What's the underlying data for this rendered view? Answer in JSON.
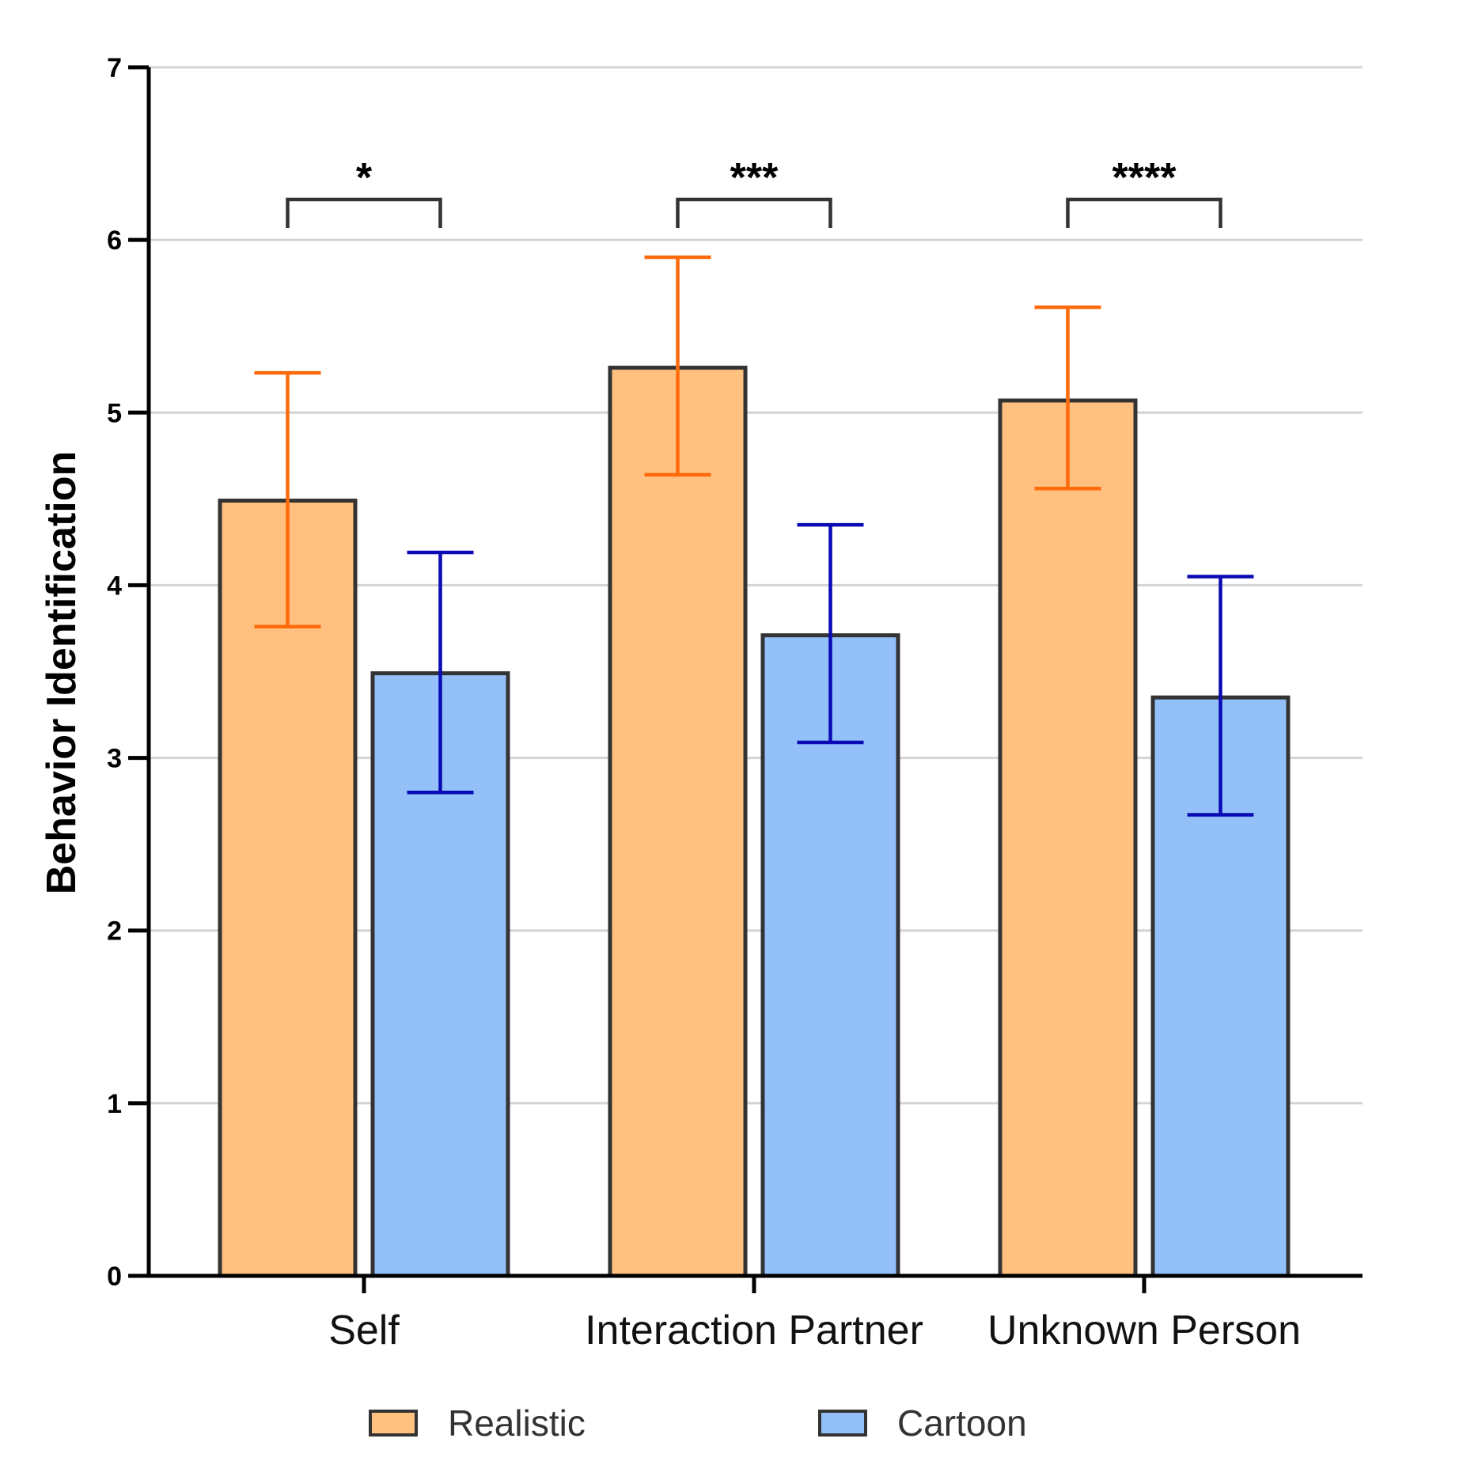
{
  "chart_data": {
    "type": "bar",
    "title": "",
    "xlabel": "",
    "ylabel": "Behavior Identification",
    "ylim": [
      0,
      7
    ],
    "yticks": [
      0,
      1,
      2,
      3,
      4,
      5,
      6,
      7
    ],
    "grid": true,
    "categories": [
      "Self",
      "Interaction Partner",
      "Unknown Person"
    ],
    "series": [
      {
        "name": "Realistic",
        "fill": "#FFC080",
        "error_color": "#FF6A0A",
        "values": [
          4.49,
          5.26,
          5.07
        ],
        "error_low": [
          3.76,
          4.64,
          4.56
        ],
        "error_high": [
          5.23,
          5.9,
          5.61
        ]
      },
      {
        "name": "Cartoon",
        "fill": "#93C0F8",
        "error_color": "#0A0AB4",
        "values": [
          3.49,
          3.71,
          3.35
        ],
        "error_low": [
          2.8,
          3.09,
          2.67
        ],
        "error_high": [
          4.19,
          4.35,
          4.05
        ]
      }
    ],
    "significance": [
      {
        "category": "Self",
        "label": "*"
      },
      {
        "category": "Interaction Partner",
        "label": "***"
      },
      {
        "category": "Unknown Person",
        "label": "****"
      }
    ],
    "legend": {
      "position": "bottom",
      "items": [
        {
          "label": "Realistic",
          "color": "#FFC080"
        },
        {
          "label": "Cartoon",
          "color": "#93C0F8"
        }
      ]
    },
    "bar_outline": "#333333",
    "grid_color": "#D4D4D4"
  }
}
